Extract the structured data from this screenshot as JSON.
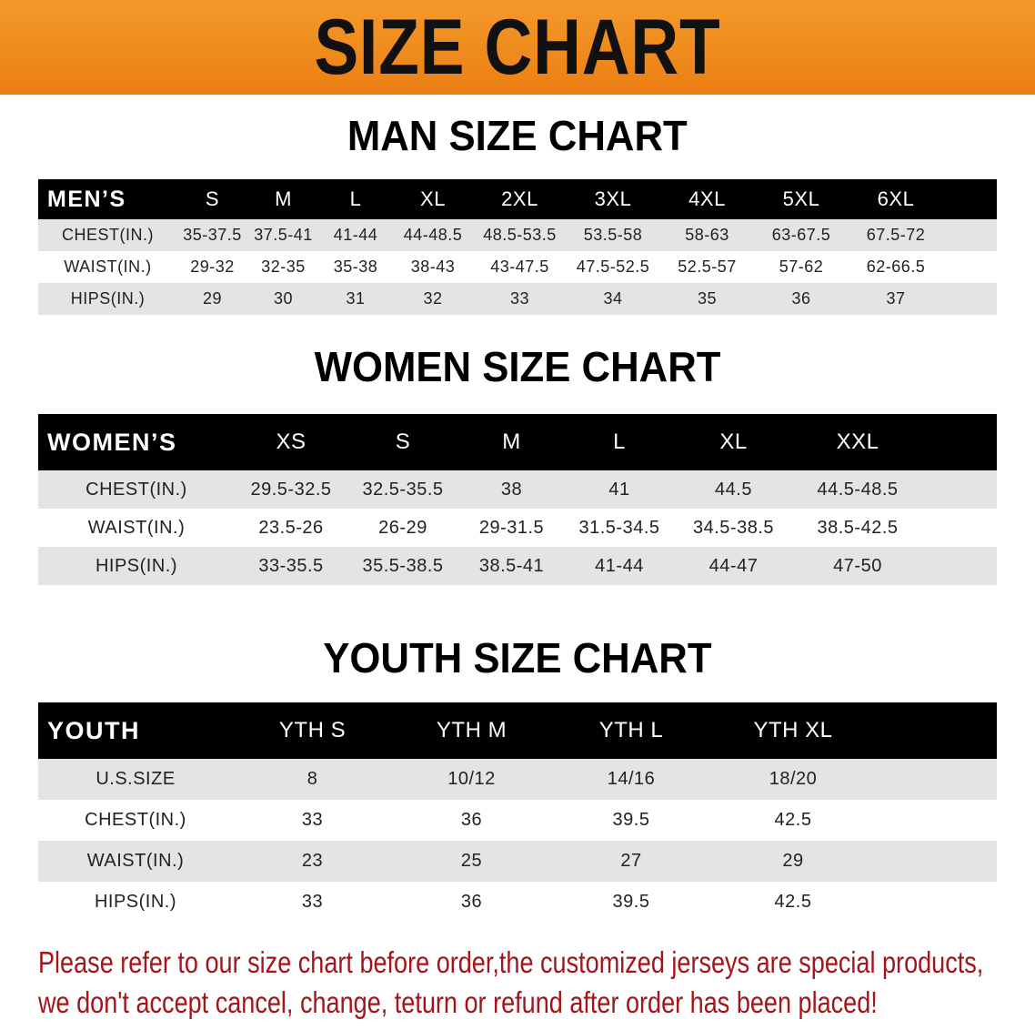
{
  "banner": {
    "title": "SIZE CHART",
    "color": "#ee8a1e"
  },
  "men": {
    "title": "MAN SIZE CHART",
    "header": [
      "MEN’S",
      "S",
      "M",
      "L",
      "XL",
      "2XL",
      "3XL",
      "4XL",
      "5XL",
      "6XL"
    ],
    "rows": [
      [
        "CHEST(IN.)",
        "35-37.5",
        "37.5-41",
        "41-44",
        "44-48.5",
        "48.5-53.5",
        "53.5-58",
        "58-63",
        "63-67.5",
        "67.5-72"
      ],
      [
        "WAIST(IN.)",
        "29-32",
        "32-35",
        "35-38",
        "38-43",
        "43-47.5",
        "47.5-52.5",
        "52.5-57",
        "57-62",
        "62-66.5"
      ],
      [
        "HIPS(IN.)",
        "29",
        "30",
        "31",
        "32",
        "33",
        "34",
        "35",
        "36",
        "37"
      ]
    ]
  },
  "women": {
    "title": "WOMEN SIZE CHART",
    "header": [
      "WOMEN’S",
      "XS",
      "S",
      "M",
      "L",
      "XL",
      "XXL"
    ],
    "rows": [
      [
        "CHEST(IN.)",
        "29.5-32.5",
        "32.5-35.5",
        "38",
        "41",
        "44.5",
        "44.5-48.5"
      ],
      [
        "WAIST(IN.)",
        "23.5-26",
        "26-29",
        "29-31.5",
        "31.5-34.5",
        "34.5-38.5",
        "38.5-42.5"
      ],
      [
        "HIPS(IN.)",
        "33-35.5",
        "35.5-38.5",
        "38.5-41",
        "41-44",
        "44-47",
        "47-50"
      ]
    ]
  },
  "youth": {
    "title": "YOUTH SIZE CHART",
    "header": [
      "YOUTH",
      "YTH S",
      "YTH M",
      "YTH L",
      "YTH XL"
    ],
    "rows": [
      [
        "U.S.SIZE",
        "8",
        "10/12",
        "14/16",
        "18/20"
      ],
      [
        "CHEST(IN.)",
        "33",
        "36",
        "39.5",
        "42.5"
      ],
      [
        "WAIST(IN.)",
        "23",
        "25",
        "27",
        "29"
      ],
      [
        "HIPS(IN.)",
        "33",
        "36",
        "39.5",
        "42.5"
      ]
    ]
  },
  "note": {
    "line1": "Please refer to our size chart before order,the customized jerseys are special products,",
    "line2": "we don't accept cancel, change, teturn or refund after order has been placed!",
    "color": "#a3151a"
  }
}
